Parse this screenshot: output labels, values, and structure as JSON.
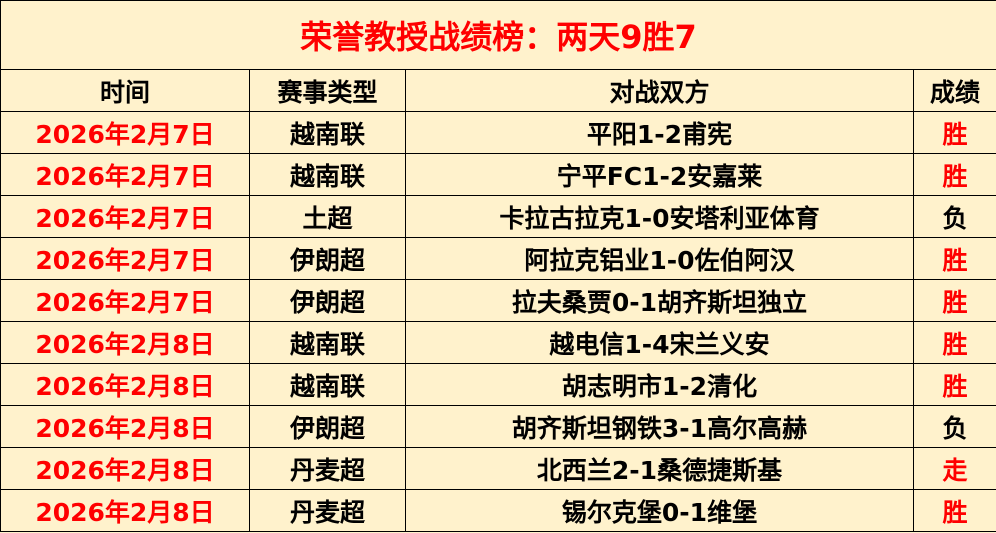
{
  "title": "荣誉教授战绩榜：两天9胜7",
  "headers": {
    "time": "时间",
    "type": "赛事类型",
    "match": "对战双方",
    "result": "成绩"
  },
  "colors": {
    "background": "#FFF2CC",
    "accent": "#FF0000",
    "text": "#000000"
  },
  "rows": [
    {
      "date": "2026年2月7日",
      "type": "越南联",
      "match": "平阳1-2甫宪",
      "result": "胜",
      "red": true
    },
    {
      "date": "2026年2月7日",
      "type": "越南联",
      "match": "宁平FC1-2安嘉莱",
      "result": "胜",
      "red": true
    },
    {
      "date": "2026年2月7日",
      "type": "土超",
      "match": "卡拉古拉克1-0安塔利亚体育",
      "result": "负",
      "red": false
    },
    {
      "date": "2026年2月7日",
      "type": "伊朗超",
      "match": "阿拉克铝业1-0佐伯阿汉",
      "result": "胜",
      "red": true
    },
    {
      "date": "2026年2月7日",
      "type": "伊朗超",
      "match": "拉夫桑贾0-1胡齐斯坦独立",
      "result": "胜",
      "red": true
    },
    {
      "date": "2026年2月8日",
      "type": "越南联",
      "match": "越电信1-4宋兰义安",
      "result": "胜",
      "red": true
    },
    {
      "date": "2026年2月8日",
      "type": "越南联",
      "match": "胡志明市1-2清化",
      "result": "胜",
      "red": true
    },
    {
      "date": "2026年2月8日",
      "type": "伊朗超",
      "match": "胡齐斯坦钢铁3-1高尔高赫",
      "result": "负",
      "red": false
    },
    {
      "date": "2026年2月8日",
      "type": "丹麦超",
      "match": "北西兰2-1桑德捷斯基",
      "result": "走",
      "red": true
    },
    {
      "date": "2026年2月8日",
      "type": "丹麦超",
      "match": "锡尔克堡0-1维堡",
      "result": "胜",
      "red": true
    }
  ]
}
